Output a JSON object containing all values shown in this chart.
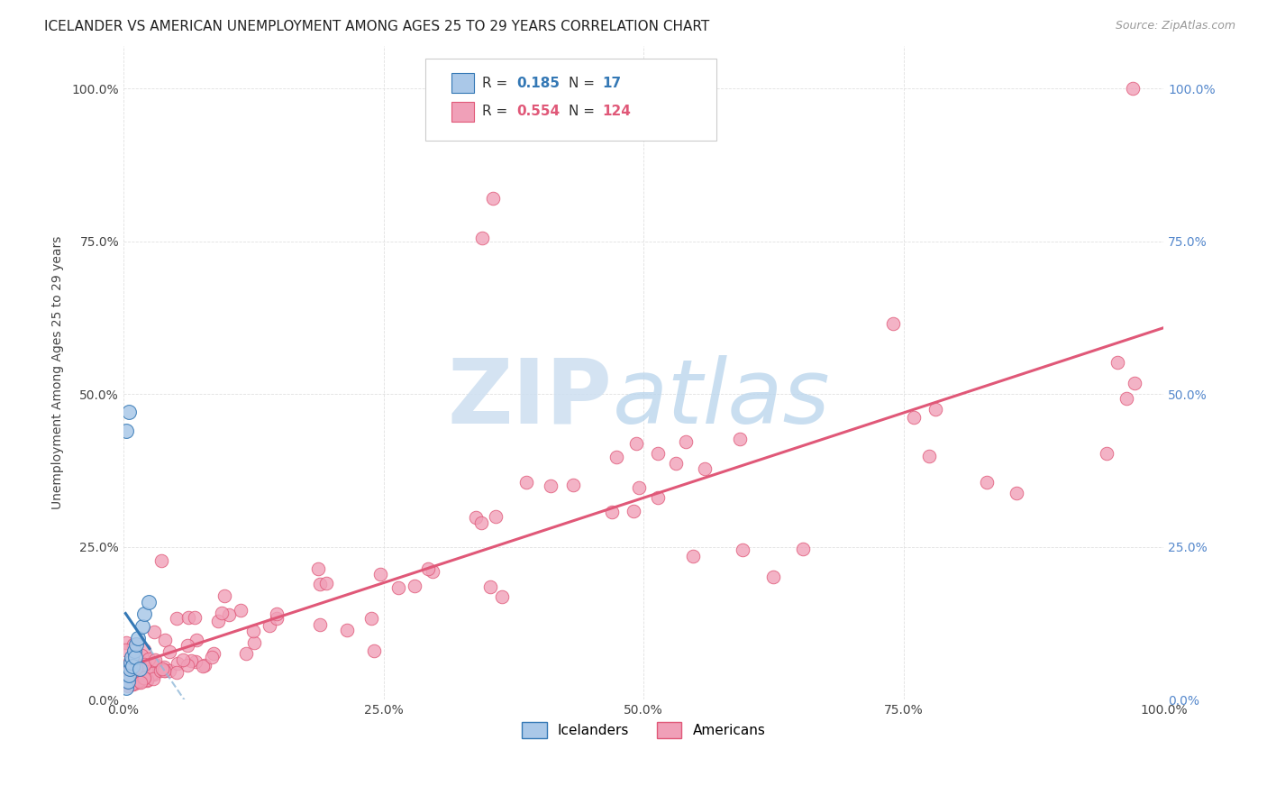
{
  "title": "ICELANDER VS AMERICAN UNEMPLOYMENT AMONG AGES 25 TO 29 YEARS CORRELATION CHART",
  "source": "Source: ZipAtlas.com",
  "ylabel": "Unemployment Among Ages 25 to 29 years",
  "icelanders": {
    "label": "Icelanders",
    "R": 0.185,
    "N": 17,
    "scatter_color": "#aac8e8",
    "line_color": "#3478b5",
    "dash_color": "#90b8d8",
    "x": [
      0.003,
      0.004,
      0.005,
      0.006,
      0.007,
      0.008,
      0.009,
      0.01,
      0.011,
      0.012,
      0.014,
      0.016,
      0.018,
      0.02,
      0.024,
      0.003,
      0.005
    ],
    "y": [
      0.02,
      0.03,
      0.04,
      0.05,
      0.06,
      0.07,
      0.055,
      0.08,
      0.07,
      0.09,
      0.1,
      0.05,
      0.12,
      0.14,
      0.16,
      0.44,
      0.47
    ]
  },
  "americans": {
    "label": "Americans",
    "R": 0.554,
    "N": 124,
    "scatter_color": "#f0a0b8",
    "line_color": "#e05878",
    "seed": 42
  },
  "watermark_zip_color": "#ccdff0",
  "watermark_atlas_color": "#b8d4e8",
  "background_color": "#ffffff",
  "grid_color": "#e0e0e0",
  "title_fontsize": 11,
  "source_fontsize": 9,
  "ylabel_fontsize": 10,
  "tick_fontsize": 10,
  "legend_fontsize": 11,
  "left_tick_color": "#444444",
  "right_tick_color": "#5588cc"
}
